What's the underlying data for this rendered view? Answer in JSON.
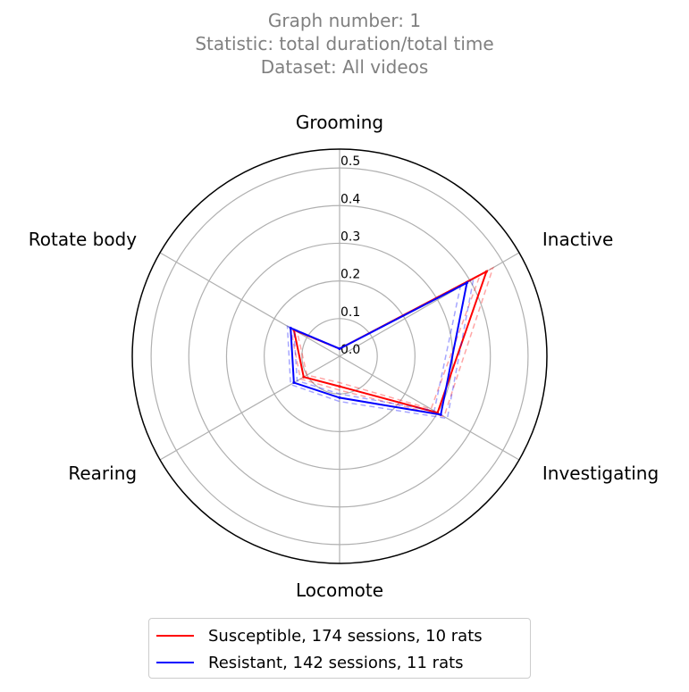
{
  "header": {
    "line1": "Graph number: 1",
    "line2": "Statistic: total duration/total time",
    "line3": "Dataset: All videos"
  },
  "chart_data": {
    "type": "radar",
    "axes": [
      "Grooming",
      "Inactive",
      "Investigating",
      "Locomote",
      "Rearing",
      "Rotate body"
    ],
    "rlim": [
      0,
      0.55
    ],
    "rticks": [
      "0.0",
      "0.1",
      "0.2",
      "0.3",
      "0.4",
      "0.5"
    ],
    "rtick_values": [
      0,
      0.1,
      0.2,
      0.3,
      0.4,
      0.5
    ],
    "grid": true,
    "legend_position": "bottom-center",
    "series": [
      {
        "name": "Susceptible, 174 sessions, 10 rats",
        "color": "#ff0000",
        "values": [
          0.02,
          0.45,
          0.3,
          0.08,
          0.11,
          0.14
        ],
        "band_low": [
          0.02,
          0.43,
          0.28,
          0.07,
          0.1,
          0.13
        ],
        "band_high": [
          0.02,
          0.47,
          0.32,
          0.09,
          0.12,
          0.15
        ]
      },
      {
        "name": "Resistant, 142 sessions, 11 rats",
        "color": "#0000ff",
        "values": [
          0.02,
          0.39,
          0.31,
          0.11,
          0.14,
          0.15
        ],
        "band_low": [
          0.02,
          0.37,
          0.29,
          0.1,
          0.13,
          0.14
        ],
        "band_high": [
          0.02,
          0.41,
          0.33,
          0.12,
          0.15,
          0.16
        ]
      }
    ]
  }
}
